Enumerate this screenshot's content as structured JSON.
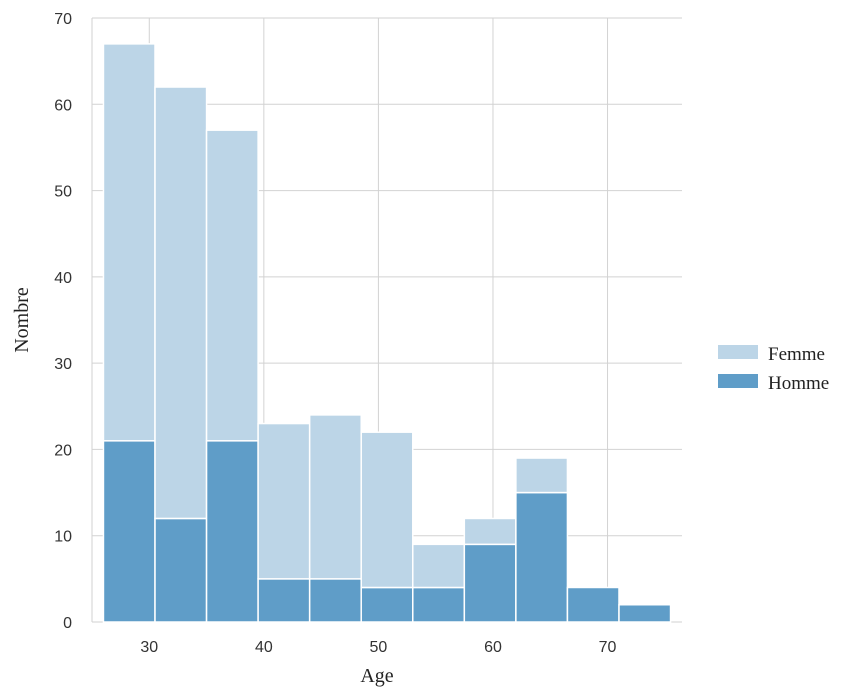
{
  "chart_data": {
    "type": "bar",
    "stacked": true,
    "xlabel": "Age",
    "ylabel": "Nombre",
    "xlim": [
      25,
      76.5
    ],
    "ylim": [
      0,
      70
    ],
    "xticks": [
      30,
      40,
      50,
      60,
      70
    ],
    "yticks": [
      0,
      10,
      20,
      30,
      40,
      50,
      60,
      70
    ],
    "grid": true,
    "legend_position": "right",
    "bin_edges": [
      26,
      30.5,
      35,
      39.5,
      44,
      48.5,
      53,
      57.5,
      62,
      66.5,
      71,
      75.5
    ],
    "series": [
      {
        "name": "Homme",
        "color": "#5f9dc8",
        "values": [
          21,
          12,
          21,
          5,
          5,
          4,
          4,
          9,
          15,
          4,
          2
        ]
      },
      {
        "name": "Femme",
        "color": "#bcd5e7",
        "values": [
          46,
          50,
          36,
          18,
          19,
          18,
          5,
          3,
          4,
          0,
          0
        ]
      }
    ],
    "totals": [
      67,
      62,
      57,
      23,
      24,
      22,
      9,
      12,
      19,
      4,
      2
    ]
  }
}
